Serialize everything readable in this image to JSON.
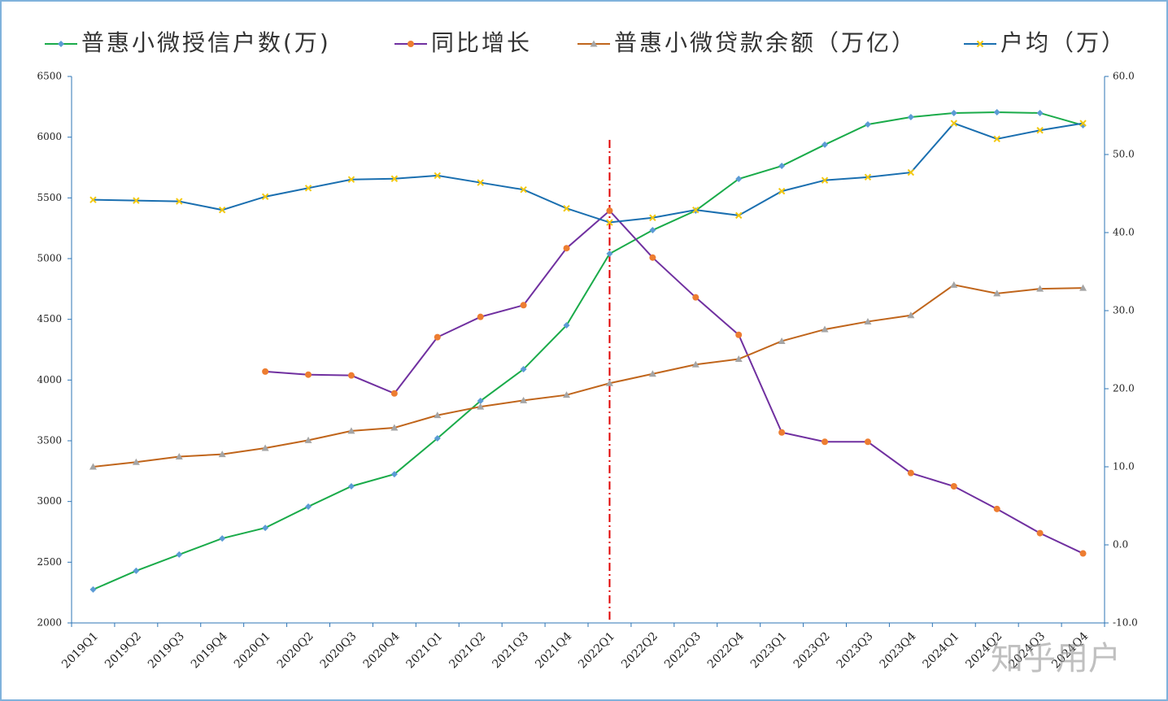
{
  "chart_data": {
    "type": "line",
    "categories": [
      "2019Q1",
      "2019Q2",
      "2019Q3",
      "2019Q4",
      "2020Q1",
      "2020Q2",
      "2020Q3",
      "2020Q4",
      "2021Q1",
      "2021Q2",
      "2021Q3",
      "2021Q4",
      "2022Q1",
      "2022Q2",
      "2022Q3",
      "2022Q4",
      "2023Q1",
      "2023Q2",
      "2023Q3",
      "2023Q4",
      "2024Q1",
      "2024Q2",
      "2024Q3",
      "2024Q4"
    ],
    "series": [
      {
        "name": "普惠小微授信户数(万)",
        "color": "#1aab4a",
        "marker": "diamond",
        "marker_color": "#5b9bd5",
        "values": [
          2275,
          2429,
          2563,
          2696,
          2783,
          2958,
          3125,
          3225,
          3520,
          3828,
          4089,
          4451,
          5040,
          5234,
          5395,
          5656,
          5763,
          5938,
          6105,
          6165,
          6199,
          6205,
          6199,
          6098
        ]
      },
      {
        "name": "同比增长",
        "color": "#7030a0",
        "marker": "circle",
        "marker_color": "#ed7d31",
        "axis": "y2",
        "values": [
          null,
          null,
          null,
          null,
          22.2,
          21.8,
          21.7,
          19.4,
          26.6,
          29.2,
          30.7,
          38.0,
          42.8,
          36.8,
          31.7,
          26.9,
          14.4,
          13.2,
          13.2,
          9.2,
          7.5,
          4.6,
          1.5,
          -1.1
        ]
      },
      {
        "name": "普惠小微贷款余额（万亿）",
        "color": "#c0651b",
        "marker": "triangle",
        "marker_color": "#a5a5a5",
        "axis": "y2",
        "values": [
          10.0,
          10.6,
          11.3,
          11.6,
          12.4,
          13.4,
          14.6,
          15.0,
          16.6,
          17.7,
          18.5,
          19.2,
          20.7,
          21.9,
          23.1,
          23.8,
          26.1,
          27.6,
          28.6,
          29.4,
          33.3,
          32.2,
          32.8,
          32.9
        ]
      },
      {
        "name": "户均（万）",
        "color": "#1a6fb0",
        "marker": "x",
        "marker_color": "#f2c811",
        "axis": "y2",
        "values": [
          44.2,
          44.1,
          44.0,
          42.9,
          44.6,
          45.7,
          46.8,
          46.9,
          47.3,
          46.4,
          45.5,
          43.1,
          41.3,
          41.9,
          42.9,
          42.2,
          45.3,
          46.7,
          47.1,
          47.7,
          54.0,
          52.0,
          53.1,
          54.0
        ]
      }
    ],
    "ylim": [
      2000,
      6500
    ],
    "yticks": [
      2000,
      2500,
      3000,
      3500,
      4000,
      4500,
      5000,
      5500,
      6000,
      6500
    ],
    "y2lim": [
      -10,
      60
    ],
    "y2ticks": [
      {
        "value": -10,
        "label": "-10.0"
      },
      {
        "value": 0,
        "label": "0.0"
      },
      {
        "value": 10,
        "label": "10.0"
      },
      {
        "value": 20,
        "label": "20.0"
      },
      {
        "value": 30,
        "label": "30.0"
      },
      {
        "value": 40,
        "label": "40.0"
      },
      {
        "value": 50,
        "label": "50.0"
      },
      {
        "value": 60,
        "label": "60.0"
      }
    ],
    "axis_color": "#2e75b6",
    "reference_line": {
      "category_index": 12,
      "color": "#e00000"
    },
    "legend": "top",
    "watermark": "知乎用户"
  }
}
